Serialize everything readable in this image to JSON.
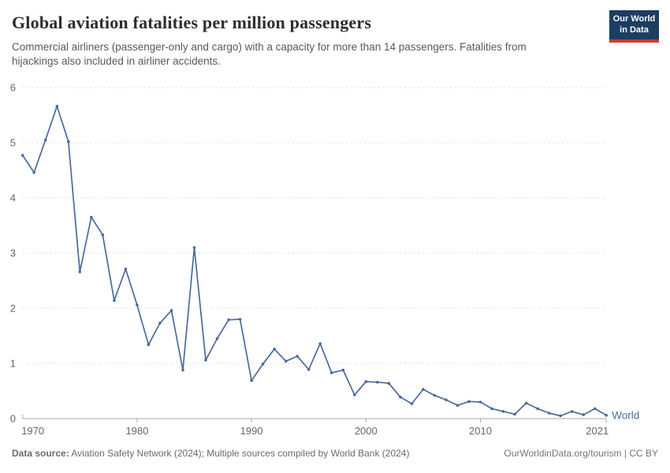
{
  "header": {
    "title": "Global aviation fatalities per million passengers",
    "subtitle": "Commercial airliners (passenger-only and cargo) with a capacity for more than 14 passengers. Fatalities from hijackings also included in airliner accidents.",
    "logo": {
      "line1": "Our World",
      "line2": "in Data",
      "bg_color": "#1D3D63",
      "accent_color": "#D8352B"
    }
  },
  "footer": {
    "source_label": "Data source:",
    "source_text": " Aviation Safety Network (2024); Multiple sources compiled by World Bank (2024)",
    "right_text": "OurWorldinData.org/tourism | CC BY"
  },
  "chart_data": {
    "type": "line",
    "title": "Global aviation fatalities per million passengers",
    "xlabel": "",
    "ylabel": "",
    "ylim": [
      0,
      6
    ],
    "yticks": [
      0,
      1,
      2,
      3,
      4,
      5,
      6
    ],
    "xticks": [
      1970,
      1980,
      1990,
      2000,
      2010,
      2021
    ],
    "grid": "horizontal-dashed",
    "legend": "end-of-line-label",
    "colors": {
      "line": "#4C6A9C",
      "grid": "#E0E0E0",
      "axis": "#A8A8A8",
      "tick_label": "#666666"
    },
    "x": [
      1970,
      1971,
      1972,
      1973,
      1974,
      1975,
      1976,
      1977,
      1978,
      1979,
      1980,
      1981,
      1982,
      1983,
      1984,
      1985,
      1986,
      1987,
      1988,
      1989,
      1990,
      1991,
      1992,
      1993,
      1994,
      1995,
      1996,
      1997,
      1998,
      1999,
      2000,
      2001,
      2002,
      2003,
      2004,
      2005,
      2006,
      2007,
      2008,
      2009,
      2010,
      2011,
      2012,
      2013,
      2014,
      2015,
      2016,
      2017,
      2018,
      2019,
      2020,
      2021
    ],
    "series": [
      {
        "name": "World",
        "color": "#4C6A9C",
        "values": [
          4.77,
          4.46,
          5.05,
          5.66,
          5.02,
          2.66,
          3.65,
          3.33,
          2.14,
          2.71,
          2.06,
          1.34,
          1.73,
          1.96,
          0.88,
          3.1,
          1.06,
          1.45,
          1.79,
          1.8,
          0.69,
          0.99,
          1.26,
          1.04,
          1.13,
          0.89,
          1.36,
          0.83,
          0.88,
          0.43,
          0.67,
          0.66,
          0.64,
          0.39,
          0.27,
          0.53,
          0.42,
          0.34,
          0.24,
          0.31,
          0.3,
          0.18,
          0.13,
          0.08,
          0.28,
          0.18,
          0.1,
          0.05,
          0.13,
          0.07,
          0.18,
          0.06
        ]
      }
    ]
  }
}
